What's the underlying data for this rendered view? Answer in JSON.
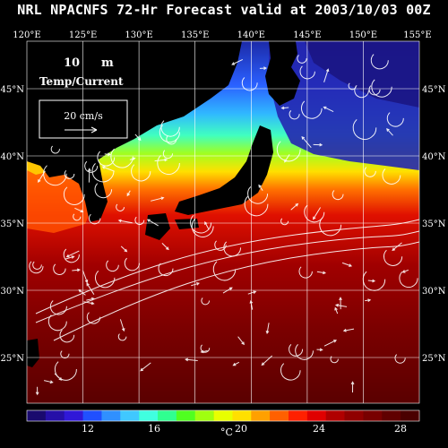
{
  "title": "NRL NPACNFS 72-Hr Forecast valid at 2003/10/03 00Z",
  "map": {
    "lon_labels": [
      "120°E",
      "125°E",
      "130°E",
      "135°E",
      "140°E",
      "145°E",
      "150°E",
      "155°E"
    ],
    "lat_labels_left": [
      "45°N",
      "40°N",
      "35°N",
      "30°N",
      "25°N"
    ],
    "lat_labels_right": [
      "45°N",
      "40°N",
      "35°N",
      "30°N",
      "25°N"
    ],
    "lon_range": [
      120,
      155
    ],
    "lat_range": [
      22,
      49
    ],
    "annotation": {
      "depth_value": "10",
      "depth_unit": "m",
      "field_label": "Temp/Current",
      "ref_vector_label": "20 cm/s"
    }
  },
  "colorbar": {
    "unit": "°C",
    "tick_labels": [
      "12",
      "16",
      "20",
      "24",
      "28"
    ],
    "colors": [
      "#1a0a6e",
      "#2610a8",
      "#3018d8",
      "#2050ff",
      "#3090ff",
      "#40c8ff",
      "#40ffe0",
      "#30ff90",
      "#50ff20",
      "#a0ff10",
      "#e8ff00",
      "#ffe000",
      "#ffa000",
      "#ff6000",
      "#ff2000",
      "#e00000",
      "#b00000",
      "#900000",
      "#780000",
      "#600000",
      "#4a0000"
    ]
  }
}
